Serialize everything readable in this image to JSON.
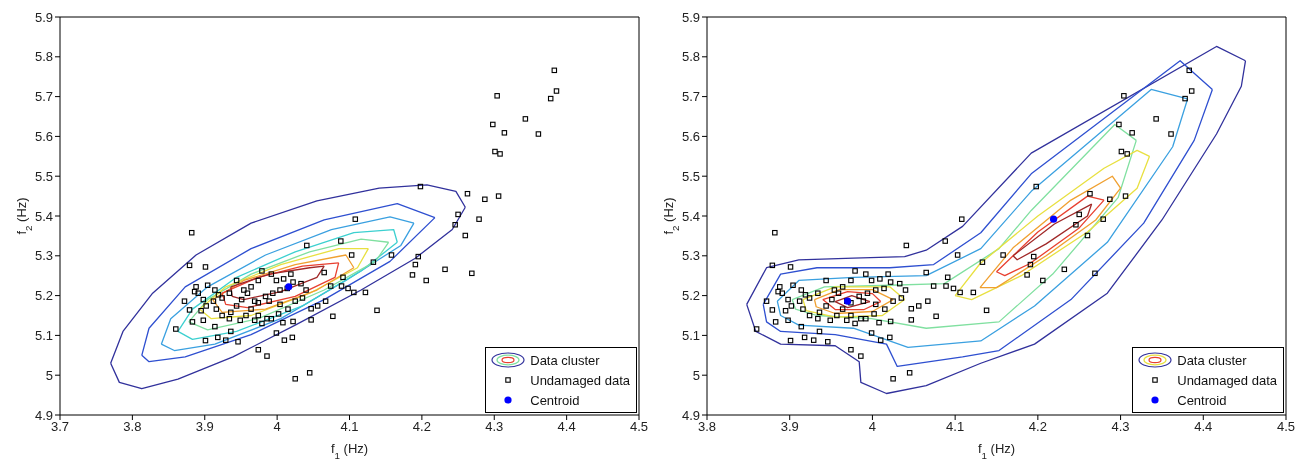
{
  "chart_data": [
    {
      "type": "scatter",
      "xlabel": "f$_{1}$ (Hz)",
      "ylabel": "f$_{2}$ (Hz)",
      "xlim": [
        3.7,
        4.5
      ],
      "ylim": [
        4.9,
        5.9
      ],
      "xticks": [
        3.7,
        3.8,
        3.9,
        4,
        4.1,
        4.2,
        4.3,
        4.4,
        4.5
      ],
      "yticks": [
        4.9,
        5,
        5.1,
        5.2,
        5.3,
        5.4,
        5.5,
        5.6,
        5.7,
        5.8,
        5.9
      ],
      "legend": "bottom right",
      "series": [
        {
          "name": "Data cluster",
          "type": "line",
          "color": "#31319c",
          "x": [
            3.77,
            3.787,
            3.828,
            3.888,
            3.964,
            4.055,
            4.141,
            4.207,
            4.247,
            4.26
          ],
          "values": [
            5.03,
            5.11,
            5.206,
            5.302,
            5.382,
            5.438,
            5.47,
            5.478,
            5.462,
            5.422
          ]
        },
        {
          "type": "line",
          "color": "#31319c",
          "x": [
            3.77,
            3.782,
            3.813,
            3.863,
            3.939,
            4.025,
            4.116,
            4.191,
            4.242,
            4.26
          ],
          "values": [
            5.03,
            4.982,
            4.966,
            4.99,
            5.046,
            5.126,
            5.214,
            5.294,
            5.366,
            5.422
          ]
        },
        {
          "type": "line",
          "color": "#2e4fd0",
          "x": [
            3.813,
            3.823,
            3.873,
            3.964,
            4.065,
            4.166,
            4.218
          ],
          "values": [
            5.05,
            5.118,
            5.222,
            5.318,
            5.39,
            5.431,
            5.396
          ]
        },
        {
          "type": "line",
          "color": "#2e4fd0",
          "x": [
            3.813,
            3.823,
            3.873,
            3.964,
            4.065,
            4.156,
            4.218
          ],
          "values": [
            5.05,
            5.034,
            5.046,
            5.102,
            5.19,
            5.286,
            5.396
          ]
        },
        {
          "type": "line",
          "color": "#3aa0e0",
          "x": [
            3.84,
            3.853,
            3.904,
            3.984,
            4.075,
            4.156,
            4.189
          ],
          "values": [
            5.078,
            5.142,
            5.222,
            5.302,
            5.366,
            5.398,
            5.382
          ]
        },
        {
          "type": "line",
          "color": "#3aa0e0",
          "x": [
            3.84,
            3.858,
            3.914,
            4.005,
            4.095,
            4.171,
            4.189
          ],
          "values": [
            5.078,
            5.062,
            5.078,
            5.142,
            5.238,
            5.326,
            5.382
          ]
        },
        {
          "type": "line",
          "color": "#3cd0d0",
          "x": [
            3.863,
            3.883,
            3.944,
            4.025,
            4.106,
            4.161,
            4.166
          ],
          "values": [
            5.11,
            5.166,
            5.246,
            5.31,
            5.358,
            5.366,
            5.334
          ]
        },
        {
          "type": "line",
          "color": "#3cd0d0",
          "x": [
            3.863,
            3.883,
            3.944,
            4.035,
            4.116,
            4.166
          ],
          "values": [
            5.11,
            5.09,
            5.11,
            5.174,
            5.262,
            5.334
          ]
        },
        {
          "type": "line",
          "color": "#80e0a0",
          "x": [
            3.878,
            3.904,
            3.964,
            4.045,
            4.116,
            4.154
          ],
          "values": [
            5.134,
            5.19,
            5.254,
            5.31,
            5.342,
            5.334
          ]
        },
        {
          "type": "line",
          "color": "#80e0a0",
          "x": [
            3.878,
            3.904,
            3.974,
            4.065,
            4.136,
            4.154
          ],
          "values": [
            5.134,
            5.114,
            5.142,
            5.214,
            5.286,
            5.334
          ]
        },
        {
          "type": "line",
          "color": "#e8e040",
          "x": [
            3.893,
            3.929,
            4.005,
            4.085,
            4.126
          ],
          "values": [
            5.166,
            5.222,
            5.278,
            5.318,
            5.318
          ]
        },
        {
          "type": "line",
          "color": "#e8e040",
          "x": [
            3.893,
            3.909,
            3.964,
            4.045,
            4.111,
            4.126
          ],
          "values": [
            5.166,
            5.142,
            5.15,
            5.206,
            5.27,
            5.318
          ]
        },
        {
          "type": "line",
          "color": "#f0a030",
          "x": [
            3.911,
            3.954,
            4.025,
            4.095,
            4.106
          ],
          "values": [
            5.19,
            5.238,
            5.278,
            5.302,
            5.27
          ]
        },
        {
          "type": "line",
          "color": "#f0a030",
          "x": [
            3.911,
            3.924,
            3.984,
            4.055,
            4.106
          ],
          "values": [
            5.19,
            5.158,
            5.166,
            5.214,
            5.27
          ]
        },
        {
          "type": "line",
          "color": "#e84030",
          "x": [
            3.924,
            3.974,
            4.035,
            4.085
          ],
          "values": [
            5.206,
            5.246,
            5.274,
            5.282
          ]
        },
        {
          "type": "line",
          "color": "#e84030",
          "x": [
            3.924,
            3.929,
            3.959,
            4.025,
            4.08,
            4.085
          ],
          "values": [
            5.206,
            5.178,
            5.17,
            5.198,
            5.246,
            5.282
          ]
        },
        {
          "type": "line",
          "color": "#a02828",
          "x": [
            3.936,
            3.989,
            4.045,
            4.065
          ],
          "values": [
            5.222,
            5.254,
            5.27,
            5.274
          ]
        },
        {
          "type": "line",
          "color": "#a02828",
          "x": [
            3.936,
            3.938,
            3.954,
            4.005,
            4.055,
            4.065
          ],
          "values": [
            5.222,
            5.198,
            5.19,
            5.21,
            5.246,
            5.274
          ]
        },
        {
          "name": "Undamaged data",
          "type": "scatter",
          "marker": "square",
          "color": "#000000",
          "x": [
            3.882,
            3.879,
            3.901,
            3.86,
            3.872,
            3.879,
            3.901,
            3.918,
            3.929,
            3.946,
            3.974,
            3.986,
            3.999,
            4.01,
            4.021,
            4.025,
            4.045,
            3.986,
            4.108,
            4.088,
            4.103,
            4.041,
            4.133,
            4.158,
            4.065,
            4.074,
            4.091,
            4.089,
            4.098,
            4.106,
            4.122,
            4.138,
            4.077,
            4.067,
            4.056,
            4.047,
            4.047,
            4.022,
            4.008,
            4.195,
            4.191,
            4.187,
            4.206,
            4.232,
            4.198,
            3.888,
            3.891,
            3.898,
            3.902,
            3.895,
            3.904,
            3.914,
            3.919,
            3.924,
            3.912,
            3.916,
            3.924,
            3.934,
            3.936,
            3.944,
            3.951,
            3.959,
            3.964,
            3.974,
            3.979,
            3.992,
            3.999,
            4.009,
            4.019,
            4.022,
            4.014,
            4.004,
            3.994,
            3.984,
            3.974,
            3.964,
            3.957,
            3.969,
            3.979,
            3.992,
            4.002,
            4.015,
            4.025,
            4.035,
            4.04,
            4.033,
            3.944,
            3.954,
            3.934,
            3.969,
            3.989,
            4.004,
            3.974,
            3.949,
            3.898,
            3.914,
            3.936,
            3.883,
            3.886,
            4.383,
            4.386,
            4.378,
            4.304,
            4.343,
            4.298,
            4.314,
            4.361,
            4.301,
            4.308,
            4.263,
            4.287,
            4.306,
            4.25,
            4.246,
            4.279,
            4.26,
            4.269
          ],
          "values": [
            5.358,
            5.276,
            5.272,
            5.116,
            5.186,
            5.164,
            5.087,
            5.095,
            5.088,
            5.084,
            5.064,
            5.048,
            5.106,
            5.088,
            5.095,
            4.991,
            5.006,
            5.142,
            5.392,
            5.337,
            5.302,
            5.326,
            5.284,
            5.302,
            5.258,
            5.224,
            5.246,
            5.224,
            5.218,
            5.208,
            5.208,
            5.163,
            5.148,
            5.186,
            5.174,
            5.167,
            5.139,
            5.135,
            5.132,
            5.298,
            5.278,
            5.252,
            5.238,
            5.266,
            5.474,
            5.222,
            5.206,
            5.19,
            5.174,
            5.162,
            5.226,
            5.214,
            5.202,
            5.194,
            5.186,
            5.166,
            5.15,
            5.142,
            5.158,
            5.174,
            5.19,
            5.206,
            5.222,
            5.238,
            5.262,
            5.254,
            5.238,
            5.242,
            5.254,
            5.234,
            5.218,
            5.214,
            5.206,
            5.198,
            5.182,
            5.166,
            5.15,
            5.138,
            5.13,
            5.142,
            5.154,
            5.166,
            5.186,
            5.194,
            5.214,
            5.23,
            5.238,
            5.214,
            5.206,
            5.186,
            5.186,
            5.178,
            5.15,
            5.138,
            5.138,
            5.122,
            5.11,
            5.134,
            5.21,
            5.766,
            5.714,
            5.695,
            5.702,
            5.644,
            5.63,
            5.609,
            5.606,
            5.562,
            5.556,
            5.456,
            5.442,
            5.45,
            5.404,
            5.378,
            5.392,
            5.351,
            5.256
          ]
        },
        {
          "name": "Centroid",
          "type": "scatter",
          "marker": "circle",
          "color": "#0000ff",
          "x": [
            4.016
          ],
          "values": [
            5.222
          ]
        }
      ]
    },
    {
      "type": "scatter",
      "xlabel": "f$_{1}$ (Hz)",
      "ylabel": "f$_{2}$ (Hz)",
      "xlim": [
        3.8,
        4.5
      ],
      "ylim": [
        4.9,
        5.9
      ],
      "xticks": [
        3.8,
        3.9,
        4,
        4.1,
        4.2,
        4.3,
        4.4,
        4.5
      ],
      "yticks": [
        4.9,
        5,
        5.1,
        5.2,
        5.3,
        5.4,
        5.5,
        5.6,
        5.7,
        5.8,
        5.9
      ],
      "legend": "bottom right",
      "series": [
        {
          "name": "Data cluster",
          "type": "line",
          "color": "#31319c",
          "x": [
            3.848,
            3.872,
            3.911,
            3.977,
            4.039,
            4.065,
            4.109,
            4.192,
            4.416,
            4.451
          ],
          "values": [
            5.178,
            5.27,
            5.29,
            5.294,
            5.298,
            5.314,
            5.374,
            5.558,
            5.826,
            5.79
          ]
        },
        {
          "type": "line",
          "color": "#31319c",
          "x": [
            3.848,
            3.859,
            3.889,
            3.955,
            3.984,
            3.986,
            4.017,
            4.065,
            4.131,
            4.196,
            4.284,
            4.35,
            4.416,
            4.446,
            4.451
          ],
          "values": [
            5.178,
            5.11,
            5.078,
            5.074,
            5.034,
            4.982,
            4.954,
            4.974,
            5.03,
            5.078,
            5.206,
            5.39,
            5.606,
            5.726,
            5.79
          ]
        },
        {
          "type": "line",
          "color": "#2e4fd0",
          "x": [
            3.868,
            3.889,
            3.933,
            4.021,
            4.074,
            4.131,
            4.192,
            4.372,
            4.411
          ],
          "values": [
            5.178,
            5.254,
            5.27,
            5.27,
            5.278,
            5.358,
            5.506,
            5.79,
            5.718
          ]
        },
        {
          "type": "line",
          "color": "#2e4fd0",
          "x": [
            3.868,
            3.872,
            3.889,
            3.955,
            4.017,
            4.03,
            4.109,
            4.153,
            4.24,
            4.328,
            4.389,
            4.411
          ],
          "values": [
            5.178,
            5.134,
            5.11,
            5.102,
            5.078,
            5.022,
            5.046,
            5.062,
            5.19,
            5.382,
            5.59,
            5.718
          ]
        },
        {
          "type": "line",
          "color": "#3aa0e0",
          "x": [
            3.885,
            3.911,
            3.977,
            4.065,
            4.131,
            4.192,
            4.337,
            4.381
          ],
          "values": [
            5.186,
            5.238,
            5.246,
            5.25,
            5.318,
            5.462,
            5.718,
            5.694
          ]
        },
        {
          "type": "line",
          "color": "#3aa0e0",
          "x": [
            3.885,
            3.889,
            3.911,
            3.977,
            4.043,
            4.131,
            4.196,
            4.284,
            4.363,
            4.381
          ],
          "values": [
            5.186,
            5.15,
            5.126,
            5.118,
            5.07,
            5.086,
            5.174,
            5.334,
            5.574,
            5.694
          ]
        },
        {
          "type": "line",
          "color": "#80e0a0",
          "x": [
            3.903,
            3.942,
            4.021,
            4.087,
            4.153,
            4.192,
            4.293,
            4.319
          ],
          "values": [
            5.19,
            5.222,
            5.226,
            5.23,
            5.318,
            5.414,
            5.63,
            5.59
          ]
        },
        {
          "type": "line",
          "color": "#80e0a0",
          "x": [
            3.903,
            3.907,
            3.933,
            3.999,
            4.065,
            4.153,
            4.218,
            4.297,
            4.319
          ],
          "values": [
            5.19,
            5.166,
            5.15,
            5.142,
            5.118,
            5.134,
            5.254,
            5.446,
            5.59
          ]
        },
        {
          "type": "line",
          "color": "#e8e040",
          "x": [
            3.916,
            3.955,
            4.021,
            4.039
          ],
          "values": [
            5.19,
            5.222,
            5.222,
            5.19
          ]
        },
        {
          "type": "line",
          "color": "#e8e040",
          "x": [
            3.916,
            3.92,
            3.955,
            4.012,
            4.039
          ],
          "values": [
            5.19,
            5.162,
            5.146,
            5.15,
            5.19
          ]
        },
        {
          "type": "line",
          "color": "#e8e040",
          "x": [
            4.1,
            4.13,
            4.2,
            4.28,
            4.32,
            4.335
          ],
          "values": [
            5.2,
            5.28,
            5.4,
            5.52,
            5.565,
            5.55
          ]
        },
        {
          "type": "line",
          "color": "#e8e040",
          "x": [
            4.1,
            4.12,
            4.18,
            4.26,
            4.32,
            4.335
          ],
          "values": [
            5.2,
            5.19,
            5.25,
            5.36,
            5.47,
            5.55
          ]
        },
        {
          "type": "line",
          "color": "#f0a030",
          "x": [
            3.93,
            3.96,
            4.0,
            4.025
          ],
          "values": [
            5.19,
            5.215,
            5.215,
            5.19
          ]
        },
        {
          "type": "line",
          "color": "#f0a030",
          "x": [
            3.93,
            3.932,
            3.955,
            4.0,
            4.025
          ],
          "values": [
            5.19,
            5.172,
            5.155,
            5.16,
            5.19
          ]
        },
        {
          "type": "line",
          "color": "#f0a030",
          "x": [
            4.13,
            4.17,
            4.24,
            4.29,
            4.3
          ],
          "values": [
            5.22,
            5.32,
            5.44,
            5.5,
            5.47
          ]
        },
        {
          "type": "line",
          "color": "#f0a030",
          "x": [
            4.13,
            4.15,
            4.21,
            4.27,
            4.3
          ],
          "values": [
            5.22,
            5.22,
            5.3,
            5.39,
            5.47
          ]
        },
        {
          "type": "line",
          "color": "#e84030",
          "x": [
            3.94,
            3.97,
            4.0,
            4.01
          ],
          "values": [
            5.19,
            5.21,
            5.205,
            5.185
          ]
        },
        {
          "type": "line",
          "color": "#e84030",
          "x": [
            3.94,
            3.955,
            3.99,
            4.01
          ],
          "values": [
            5.19,
            5.165,
            5.165,
            5.185
          ]
        },
        {
          "type": "line",
          "color": "#e84030",
          "x": [
            4.15,
            4.2,
            4.26,
            4.28
          ],
          "values": [
            5.26,
            5.36,
            5.45,
            5.44
          ]
        },
        {
          "type": "line",
          "color": "#e84030",
          "x": [
            4.15,
            4.16,
            4.19,
            4.25,
            4.28
          ],
          "values": [
            5.26,
            5.25,
            5.28,
            5.37,
            5.44
          ]
        },
        {
          "type": "line",
          "color": "#a02828",
          "x": [
            3.955,
            3.975,
            3.997
          ],
          "values": [
            5.185,
            5.2,
            5.185
          ]
        },
        {
          "type": "line",
          "color": "#a02828",
          "x": [
            3.955,
            3.97,
            3.997
          ],
          "values": [
            5.185,
            5.17,
            5.185
          ]
        },
        {
          "type": "line",
          "color": "#a02828",
          "x": [
            4.17,
            4.22,
            4.265
          ],
          "values": [
            5.3,
            5.38,
            5.43
          ]
        },
        {
          "type": "line",
          "color": "#a02828",
          "x": [
            4.17,
            4.175,
            4.21,
            4.26,
            4.265
          ],
          "values": [
            5.3,
            5.29,
            5.33,
            5.4,
            5.43
          ]
        },
        {
          "name": "Undamaged data",
          "type": "scatter",
          "marker": "square",
          "color": "#000000",
          "x": [
            3.882,
            3.879,
            3.901,
            3.86,
            3.872,
            3.879,
            3.901,
            3.918,
            3.929,
            3.946,
            3.974,
            3.986,
            3.999,
            4.01,
            4.021,
            4.025,
            4.045,
            3.986,
            4.108,
            4.088,
            4.103,
            4.041,
            4.133,
            4.158,
            4.065,
            4.074,
            4.091,
            4.089,
            4.098,
            4.106,
            4.122,
            4.138,
            4.077,
            4.067,
            4.056,
            4.047,
            4.047,
            4.022,
            4.008,
            4.195,
            4.191,
            4.187,
            4.206,
            4.232,
            4.198,
            3.888,
            3.891,
            3.898,
            3.902,
            3.895,
            3.904,
            3.914,
            3.919,
            3.924,
            3.912,
            3.916,
            3.924,
            3.934,
            3.936,
            3.944,
            3.951,
            3.959,
            3.964,
            3.974,
            3.979,
            3.992,
            3.999,
            4.009,
            4.019,
            4.022,
            4.014,
            4.004,
            3.994,
            3.984,
            3.974,
            3.964,
            3.957,
            3.969,
            3.979,
            3.992,
            4.002,
            4.015,
            4.025,
            4.035,
            4.04,
            4.033,
            3.944,
            3.954,
            3.934,
            3.969,
            3.989,
            4.004,
            3.974,
            3.949,
            3.898,
            3.914,
            3.936,
            3.883,
            3.886,
            4.383,
            4.386,
            4.378,
            4.304,
            4.343,
            4.298,
            4.314,
            4.361,
            4.301,
            4.308,
            4.263,
            4.287,
            4.306,
            4.25,
            4.246,
            4.279,
            4.26,
            4.269
          ],
          "values": [
            5.358,
            5.276,
            5.272,
            5.116,
            5.186,
            5.164,
            5.087,
            5.095,
            5.088,
            5.084,
            5.064,
            5.048,
            5.106,
            5.088,
            5.095,
            4.991,
            5.006,
            5.142,
            5.392,
            5.337,
            5.302,
            5.326,
            5.284,
            5.302,
            5.258,
            5.224,
            5.246,
            5.224,
            5.218,
            5.208,
            5.208,
            5.163,
            5.148,
            5.186,
            5.174,
            5.167,
            5.139,
            5.135,
            5.132,
            5.298,
            5.278,
            5.252,
            5.238,
            5.266,
            5.474,
            5.222,
            5.206,
            5.19,
            5.174,
            5.162,
            5.226,
            5.214,
            5.202,
            5.194,
            5.186,
            5.166,
            5.15,
            5.142,
            5.158,
            5.174,
            5.19,
            5.206,
            5.222,
            5.238,
            5.262,
            5.254,
            5.238,
            5.242,
            5.254,
            5.234,
            5.218,
            5.214,
            5.206,
            5.198,
            5.182,
            5.166,
            5.15,
            5.138,
            5.13,
            5.142,
            5.154,
            5.166,
            5.186,
            5.194,
            5.214,
            5.23,
            5.238,
            5.214,
            5.206,
            5.186,
            5.186,
            5.178,
            5.15,
            5.138,
            5.138,
            5.122,
            5.11,
            5.134,
            5.21,
            5.766,
            5.714,
            5.695,
            5.702,
            5.644,
            5.63,
            5.609,
            5.606,
            5.562,
            5.556,
            5.456,
            5.442,
            5.45,
            5.404,
            5.378,
            5.392,
            5.351,
            5.256
          ]
        },
        {
          "name": "Centroid",
          "type": "scatter",
          "marker": "circle",
          "color": "#0000ff",
          "x": [
            3.97,
            4.219
          ],
          "values": [
            5.186,
            5.392
          ]
        }
      ]
    }
  ]
}
